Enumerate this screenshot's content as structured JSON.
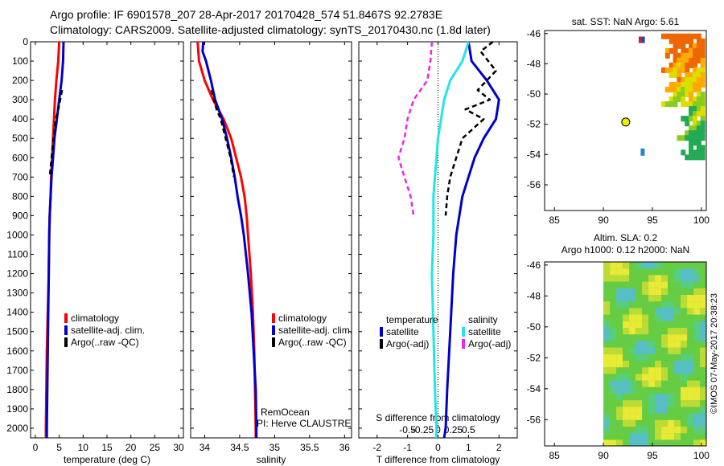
{
  "header": {
    "line1": "Argo profile: IF 6901578_207 28-Apr-2017 20170428_574 51.8467S 92.2783E",
    "line2": "Climatology: CARS2009. Satellite-adjusted climatology: synTS_20170430.nc (1.8d later)"
  },
  "colors": {
    "red": "#ff0000",
    "blue": "#0000cc",
    "black": "#000000",
    "cyan": "#22e6e6",
    "magenta": "#ee22ee"
  },
  "depth_ticks": [
    0,
    100,
    200,
    300,
    400,
    500,
    600,
    700,
    800,
    900,
    1000,
    1100,
    1200,
    1300,
    1400,
    1500,
    1600,
    1700,
    1800,
    1900,
    2000
  ],
  "credits": {
    "center": "RemOcean",
    "pi": "PI: Herve CLAUSTRE",
    "stamp": "©IMOS 07-May-2017 20:38:23"
  },
  "chart_data": [
    {
      "type": "line",
      "name": "temperature_profile",
      "xlabel": "temperature (deg C)",
      "ylabel": "depth",
      "xlim": [
        -1,
        31
      ],
      "ylim": [
        0,
        2050
      ],
      "xticks": [
        0,
        5,
        10,
        15,
        20,
        25,
        30
      ],
      "legend": [
        "climatology",
        "satellite-adj. clim.",
        "Argo(..raw -QC)"
      ],
      "series": [
        {
          "name": "climatology",
          "color": "red",
          "points": [
            [
              5.0,
              0
            ],
            [
              4.8,
              100
            ],
            [
              4.4,
              200
            ],
            [
              4.1,
              300
            ],
            [
              3.9,
              400
            ],
            [
              3.7,
              500
            ],
            [
              3.5,
              600
            ],
            [
              3.3,
              700
            ],
            [
              3.2,
              800
            ],
            [
              3.0,
              900
            ],
            [
              2.9,
              1000
            ],
            [
              2.8,
              1200
            ],
            [
              2.6,
              1400
            ],
            [
              2.4,
              1600
            ],
            [
              2.3,
              1800
            ],
            [
              2.2,
              2000
            ],
            [
              2.2,
              2050
            ]
          ]
        },
        {
          "name": "satellite-adj. clim.",
          "color": "blue",
          "points": [
            [
              5.9,
              0
            ],
            [
              5.8,
              100
            ],
            [
              5.5,
              200
            ],
            [
              5.0,
              300
            ],
            [
              4.5,
              400
            ],
            [
              4.0,
              500
            ],
            [
              3.7,
              600
            ],
            [
              3.4,
              700
            ],
            [
              3.2,
              800
            ],
            [
              3.0,
              900
            ],
            [
              2.9,
              1000
            ],
            [
              2.8,
              1200
            ],
            [
              2.7,
              1400
            ],
            [
              2.6,
              1600
            ],
            [
              2.5,
              1800
            ],
            [
              2.4,
              2000
            ],
            [
              2.4,
              2050
            ]
          ]
        },
        {
          "name": "Argo(..raw -QC)",
          "color": "black",
          "dashed": true,
          "points": [
            [
              5.6,
              250
            ],
            [
              5.2,
              300
            ],
            [
              4.8,
              350
            ],
            [
              4.3,
              400
            ],
            [
              4.0,
              450
            ],
            [
              3.8,
              500
            ],
            [
              3.6,
              550
            ],
            [
              3.4,
              600
            ],
            [
              3.2,
              650
            ],
            [
              3.0,
              700
            ]
          ]
        }
      ]
    },
    {
      "type": "line",
      "name": "salinity_profile",
      "xlabel": "salinity",
      "xlim": [
        33.8,
        36.1
      ],
      "ylim": [
        0,
        2050
      ],
      "xticks": [
        34,
        34.5,
        35,
        35.5,
        36
      ],
      "legend": [
        "climatology",
        "satellite-adj. clim.",
        "Argo(..raw -QC)"
      ],
      "series": [
        {
          "name": "climatology",
          "color": "red",
          "points": [
            [
              33.9,
              0
            ],
            [
              33.92,
              100
            ],
            [
              34.0,
              200
            ],
            [
              34.12,
              300
            ],
            [
              34.27,
              400
            ],
            [
              34.38,
              500
            ],
            [
              34.45,
              600
            ],
            [
              34.52,
              700
            ],
            [
              34.57,
              800
            ],
            [
              34.6,
              900
            ],
            [
              34.62,
              1000
            ],
            [
              34.66,
              1200
            ],
            [
              34.69,
              1400
            ],
            [
              34.71,
              1600
            ],
            [
              34.72,
              1800
            ],
            [
              34.73,
              2000
            ],
            [
              34.73,
              2050
            ]
          ]
        },
        {
          "name": "satellite-adj. clim.",
          "color": "blue",
          "points": [
            [
              33.98,
              0
            ],
            [
              33.97,
              50
            ],
            [
              34.02,
              100
            ],
            [
              34.09,
              200
            ],
            [
              34.15,
              300
            ],
            [
              34.25,
              400
            ],
            [
              34.32,
              500
            ],
            [
              34.38,
              600
            ],
            [
              34.43,
              700
            ],
            [
              34.47,
              800
            ],
            [
              34.52,
              900
            ],
            [
              34.56,
              1000
            ],
            [
              34.62,
              1200
            ],
            [
              34.67,
              1400
            ],
            [
              34.7,
              1600
            ],
            [
              34.73,
              1800
            ],
            [
              34.74,
              2000
            ],
            [
              34.74,
              2050
            ]
          ]
        },
        {
          "name": "Argo(..raw -QC)",
          "color": "black",
          "dashed": true,
          "points": [
            [
              34.1,
              250
            ],
            [
              34.17,
              350
            ],
            [
              34.23,
              400
            ],
            [
              34.3,
              500
            ],
            [
              34.37,
              600
            ],
            [
              34.42,
              700
            ]
          ]
        }
      ]
    },
    {
      "type": "line",
      "name": "difference_profile",
      "xlabel": "T difference from climatology",
      "top_label": "S difference from climatology",
      "xlim": [
        -2.6,
        2.6
      ],
      "ylim": [
        0,
        2050
      ],
      "xticks": [
        -2,
        -1,
        0,
        1,
        2
      ],
      "s_ticks": [
        [
          -0.5,
          "-0.5"
        ],
        [
          -0.25,
          "-0.25"
        ],
        [
          0,
          "0"
        ],
        [
          0.25,
          "0.25"
        ],
        [
          0.5,
          "0.5"
        ]
      ],
      "legend_temperature_title": "temperature",
      "legend_salinity_title": "salinity",
      "legend": [
        "satellite",
        "Argo(-adj)",
        "satellite",
        "Argo(-adj)"
      ],
      "series": [
        {
          "name": "T satellite",
          "color": "blue",
          "points": [
            [
              1.0,
              0
            ],
            [
              1.1,
              100
            ],
            [
              1.6,
              200
            ],
            [
              2.0,
              300
            ],
            [
              1.9,
              400
            ],
            [
              1.5,
              500
            ],
            [
              1.2,
              600
            ],
            [
              1.0,
              700
            ],
            [
              0.8,
              800
            ],
            [
              0.6,
              1000
            ],
            [
              0.5,
              1200
            ],
            [
              0.4,
              1500
            ],
            [
              0.3,
              1800
            ],
            [
              0.25,
              2000
            ],
            [
              0.2,
              2050
            ]
          ]
        },
        {
          "name": "T Argo(-adj)",
          "color": "black",
          "dashed": true,
          "points": [
            [
              1.8,
              0
            ],
            [
              1.4,
              50
            ],
            [
              1.9,
              150
            ],
            [
              1.3,
              250
            ],
            [
              1.7,
              300
            ],
            [
              0.9,
              350
            ],
            [
              1.5,
              400
            ],
            [
              0.8,
              500
            ],
            [
              0.6,
              600
            ],
            [
              0.4,
              700
            ],
            [
              0.3,
              800
            ],
            [
              0.25,
              900
            ]
          ]
        },
        {
          "name": "S satellite",
          "color": "cyan",
          "points": [
            [
              1.0,
              0
            ],
            [
              0.8,
              100
            ],
            [
              0.4,
              200
            ],
            [
              0.2,
              300
            ],
            [
              0.1,
              400
            ],
            [
              0.0,
              500
            ],
            [
              -0.05,
              600
            ],
            [
              -0.1,
              700
            ],
            [
              -0.15,
              800
            ],
            [
              -0.15,
              900
            ],
            [
              -0.15,
              1000
            ],
            [
              -0.2,
              1200
            ],
            [
              -0.15,
              1500
            ],
            [
              -0.1,
              1800
            ],
            [
              -0.05,
              2000
            ],
            [
              -0.05,
              2050
            ]
          ]
        },
        {
          "name": "S Argo(-adj)",
          "color": "magenta",
          "dashed": true,
          "points": [
            [
              -0.2,
              0
            ],
            [
              -0.25,
              100
            ],
            [
              -0.35,
              200
            ],
            [
              -0.8,
              300
            ],
            [
              -1.0,
              400
            ],
            [
              -1.1,
              500
            ],
            [
              -1.3,
              600
            ],
            [
              -1.1,
              700
            ],
            [
              -0.9,
              800
            ],
            [
              -0.8,
              900
            ]
          ]
        }
      ]
    },
    {
      "type": "heatmap",
      "name": "sst_map",
      "title": "sat. SST: NaN Argo: 5.61",
      "xlim": [
        84,
        100.5
      ],
      "ylim": [
        -57.7,
        -45.8
      ],
      "xticks": [
        85,
        90,
        95,
        100
      ],
      "yticks": [
        -46,
        -48,
        -50,
        -52,
        -54,
        -56
      ],
      "marker": {
        "lon": 92.28,
        "lat": -51.85
      }
    },
    {
      "type": "heatmap",
      "name": "sla_map",
      "title1": "Altim. SLA: 0.2",
      "title2": "Argo h1000: 0.12 h2000: NaN",
      "xlim": [
        84,
        100.5
      ],
      "ylim": [
        -57.7,
        -45.8
      ],
      "xticks": [
        85,
        90,
        95,
        100
      ],
      "yticks": [
        -46,
        -48,
        -50,
        -52,
        -54,
        -56
      ]
    }
  ]
}
